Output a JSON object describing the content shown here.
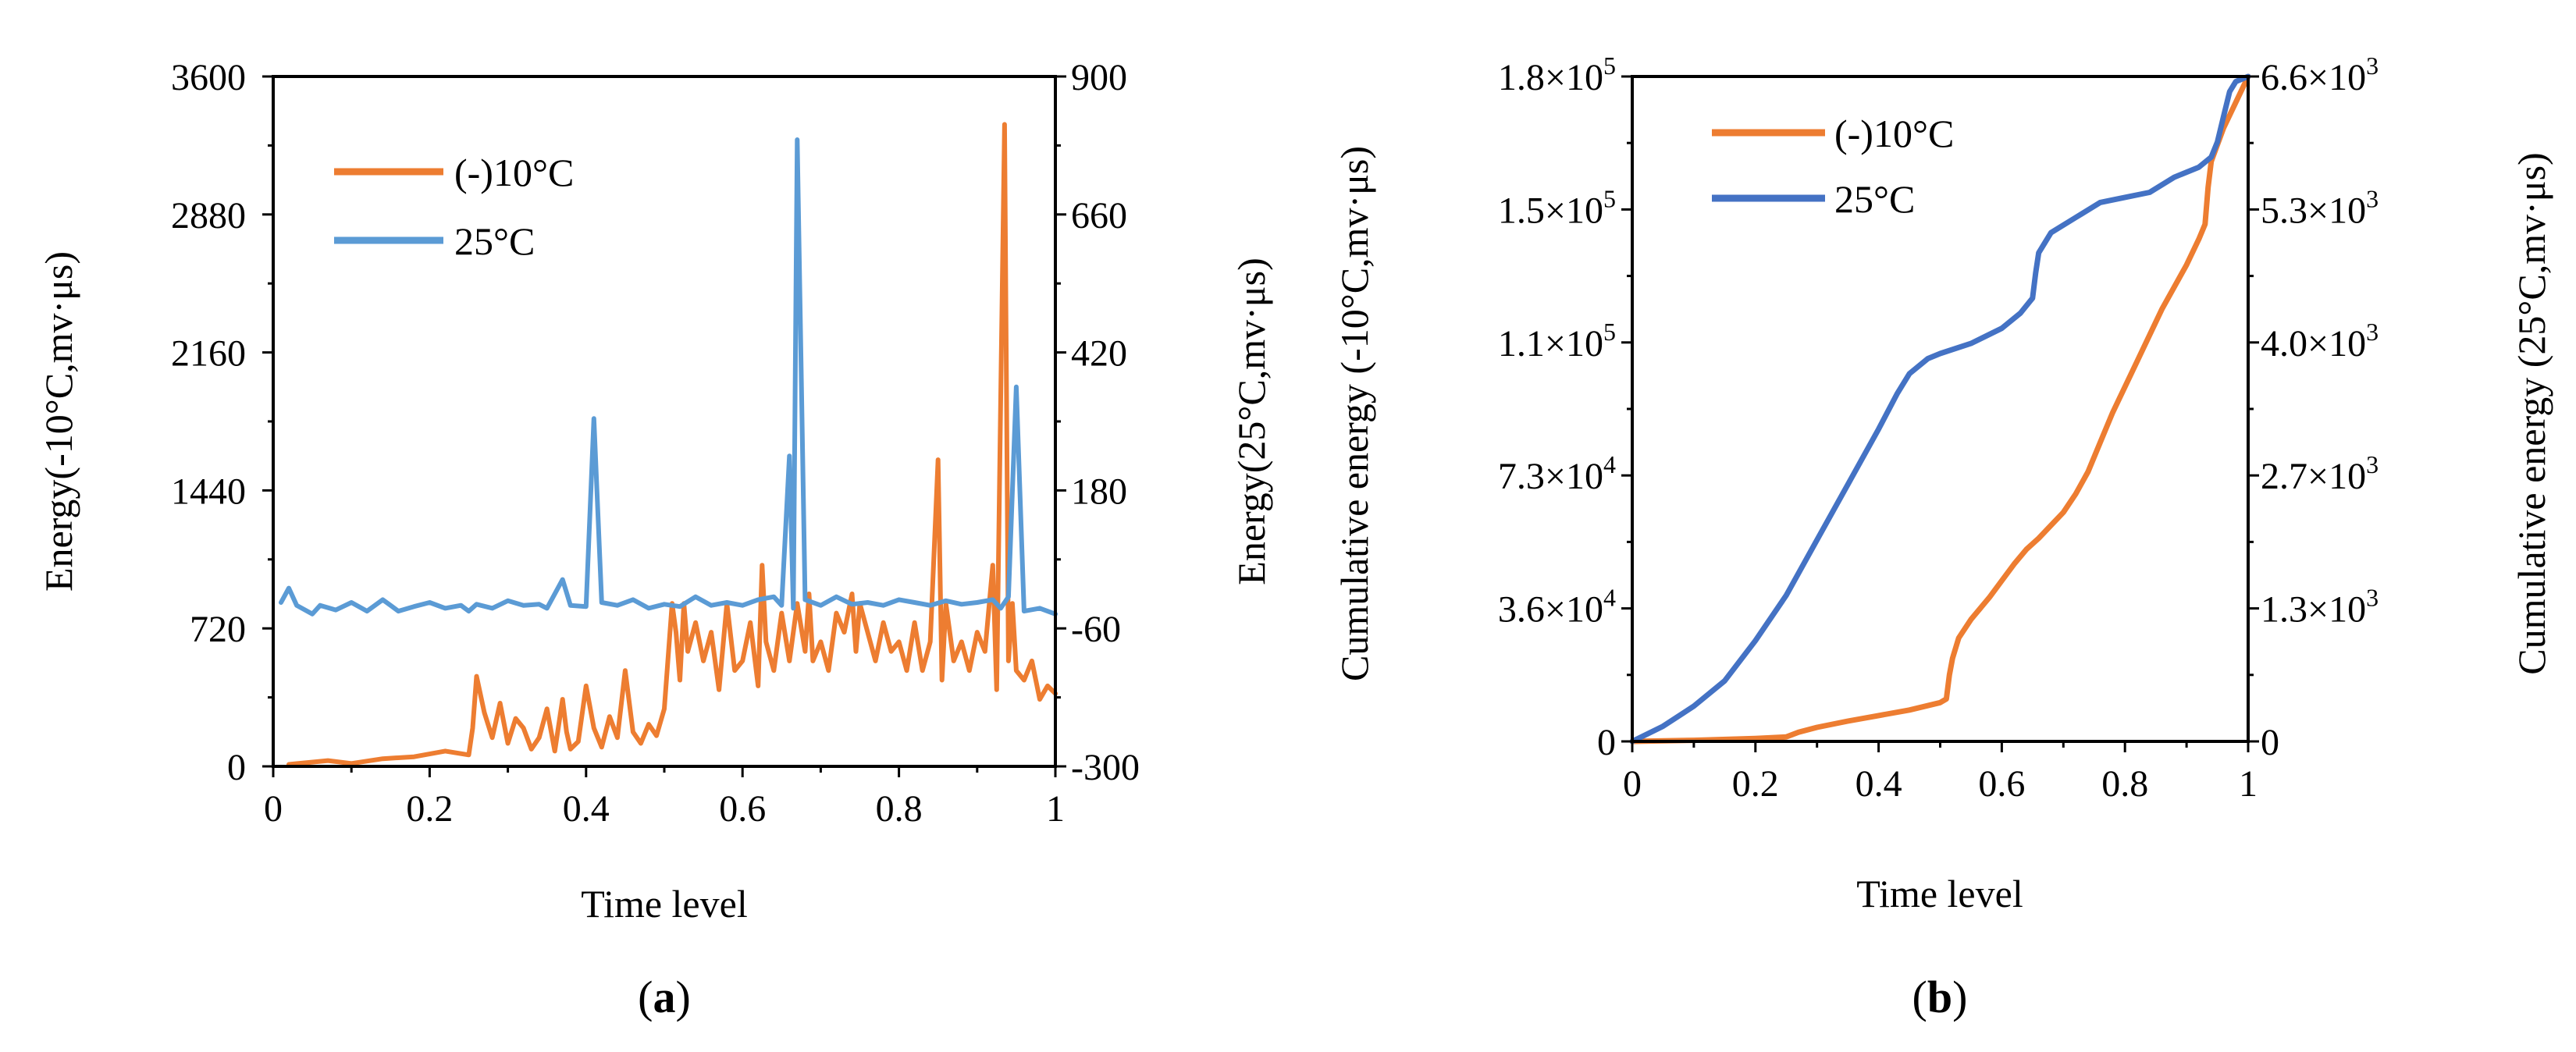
{
  "panels": [
    {
      "label_open": "(",
      "label_letter": "a",
      "label_close": ")",
      "xlabel": "Time level",
      "ylabel_left": "Energy(-10°C,mv·μs)",
      "ylabel_right": "Energy(25°C,mv·μs)"
    },
    {
      "label_open": "(",
      "label_letter": "b",
      "label_close": ")",
      "xlabel": "Time level",
      "ylabel_left": "Cumulative energy (-10°C,mv·μs)",
      "ylabel_right": "Cumulative energy (25°C,mv·μs)"
    }
  ],
  "colors": {
    "orange": "#ED7D31",
    "light_blue": "#5B9BD5",
    "dark_blue": "#4472C4"
  },
  "chart_data": [
    {
      "type": "line",
      "title": "",
      "xlabel": "Time level",
      "ylabel": "Energy(-10°C,mv·μs)",
      "y2label": "Energy(25°C,mv·μs)",
      "xlim": [
        0,
        1
      ],
      "ylim": [
        0,
        3600
      ],
      "y2lim": [
        -300,
        900
      ],
      "x_ticks": [
        "0",
        "0.2",
        "0.4",
        "0.6",
        "0.8",
        "1"
      ],
      "y_ticks": [
        "0",
        "720",
        "1440",
        "2160",
        "2880",
        "3600"
      ],
      "y2_ticks": [
        "-300",
        "-60",
        "180",
        "420",
        "660",
        "900"
      ],
      "legend": [
        "(-)10°C",
        "25°C"
      ],
      "legend_position": "top-left",
      "series": [
        {
          "name": "(-)10°C",
          "axis": "left",
          "color": "#ED7D31",
          "x": [
            0.02,
            0.07,
            0.1,
            0.14,
            0.18,
            0.22,
            0.25,
            0.255,
            0.26,
            0.27,
            0.28,
            0.29,
            0.3,
            0.31,
            0.32,
            0.33,
            0.34,
            0.35,
            0.36,
            0.37,
            0.375,
            0.38,
            0.39,
            0.4,
            0.41,
            0.42,
            0.43,
            0.44,
            0.45,
            0.46,
            0.47,
            0.48,
            0.49,
            0.5,
            0.51,
            0.515,
            0.52,
            0.525,
            0.53,
            0.54,
            0.55,
            0.56,
            0.57,
            0.58,
            0.59,
            0.6,
            0.61,
            0.62,
            0.625,
            0.63,
            0.64,
            0.65,
            0.66,
            0.67,
            0.68,
            0.685,
            0.69,
            0.7,
            0.71,
            0.72,
            0.73,
            0.74,
            0.745,
            0.75,
            0.76,
            0.77,
            0.78,
            0.79,
            0.8,
            0.81,
            0.82,
            0.83,
            0.84,
            0.85,
            0.855,
            0.86,
            0.87,
            0.88,
            0.89,
            0.9,
            0.91,
            0.92,
            0.925,
            0.93,
            0.935,
            0.94,
            0.945,
            0.95,
            0.96,
            0.97,
            0.98,
            0.99,
            1.0
          ],
          "y": [
            10,
            30,
            15,
            40,
            50,
            80,
            60,
            200,
            470,
            280,
            150,
            330,
            120,
            250,
            200,
            90,
            150,
            300,
            80,
            350,
            180,
            90,
            130,
            420,
            200,
            100,
            260,
            150,
            500,
            180,
            120,
            220,
            160,
            300,
            850,
            700,
            450,
            850,
            600,
            750,
            550,
            700,
            400,
            850,
            500,
            550,
            750,
            420,
            1050,
            650,
            500,
            800,
            550,
            850,
            600,
            900,
            550,
            650,
            500,
            800,
            700,
            900,
            600,
            850,
            700,
            550,
            750,
            600,
            650,
            500,
            750,
            500,
            650,
            1600,
            450,
            850,
            550,
            650,
            500,
            700,
            600,
            1050,
            400,
            1900,
            3350,
            550,
            850,
            500,
            450,
            550,
            350,
            420,
            380
          ]
        },
        {
          "name": "25°C",
          "axis": "right",
          "color": "#5B9BD5",
          "x": [
            0.01,
            0.02,
            0.03,
            0.05,
            0.06,
            0.08,
            0.1,
            0.12,
            0.14,
            0.15,
            0.16,
            0.18,
            0.2,
            0.22,
            0.24,
            0.25,
            0.26,
            0.28,
            0.3,
            0.32,
            0.34,
            0.35,
            0.37,
            0.38,
            0.4,
            0.41,
            0.42,
            0.44,
            0.46,
            0.48,
            0.5,
            0.52,
            0.54,
            0.56,
            0.58,
            0.6,
            0.62,
            0.64,
            0.65,
            0.66,
            0.665,
            0.67,
            0.68,
            0.7,
            0.72,
            0.74,
            0.76,
            0.78,
            0.8,
            0.82,
            0.84,
            0.86,
            0.88,
            0.9,
            0.92,
            0.93,
            0.94,
            0.95,
            0.96,
            0.98,
            1.0
          ],
          "y": [
            -15,
            10,
            -20,
            -35,
            -20,
            -28,
            -15,
            -30,
            -10,
            -20,
            -30,
            -22,
            -15,
            -25,
            -20,
            -30,
            -18,
            -25,
            -12,
            -20,
            -18,
            -25,
            25,
            -20,
            -22,
            305,
            -15,
            -20,
            -10,
            -25,
            -18,
            -22,
            -5,
            -20,
            -15,
            -20,
            -10,
            -5,
            -20,
            240,
            -25,
            790,
            -10,
            -20,
            -5,
            -18,
            -15,
            -20,
            -10,
            -15,
            -20,
            -12,
            -18,
            -15,
            -10,
            -25,
            -5,
            360,
            -30,
            -25,
            -35
          ]
        }
      ]
    },
    {
      "type": "line",
      "title": "",
      "xlabel": "Time level",
      "ylabel": "Cumulative energy (-10°C,mv·μs)",
      "y2label": "Cumulative energy (25°C,mv·μs)",
      "xlim": [
        0,
        1
      ],
      "ylim": [
        0,
        180000
      ],
      "y2lim": [
        0,
        6600
      ],
      "x_ticks": [
        "0",
        "0.2",
        "0.4",
        "0.6",
        "0.8",
        "1"
      ],
      "y_ticks": [
        {
          "mant": "0",
          "exp": ""
        },
        {
          "mant": "3.6×10",
          "exp": "4"
        },
        {
          "mant": "7.3×10",
          "exp": "4"
        },
        {
          "mant": "1.1×10",
          "exp": "5"
        },
        {
          "mant": "1.5×10",
          "exp": "5"
        },
        {
          "mant": "1.8×10",
          "exp": "5"
        }
      ],
      "y2_ticks": [
        {
          "mant": "0",
          "exp": ""
        },
        {
          "mant": "1.3×10",
          "exp": "3"
        },
        {
          "mant": "2.7×10",
          "exp": "3"
        },
        {
          "mant": "4.0×10",
          "exp": "3"
        },
        {
          "mant": "5.3×10",
          "exp": "3"
        },
        {
          "mant": "6.6×10",
          "exp": "3"
        }
      ],
      "legend": [
        "(-)10°C",
        "25°C"
      ],
      "legend_position": "top-left",
      "series": [
        {
          "name": "(-)10°C",
          "axis": "left",
          "color": "#ED7D31",
          "x": [
            0,
            0.1,
            0.2,
            0.25,
            0.27,
            0.3,
            0.35,
            0.4,
            0.45,
            0.5,
            0.51,
            0.515,
            0.52,
            0.53,
            0.55,
            0.58,
            0.6,
            0.62,
            0.64,
            0.66,
            0.68,
            0.7,
            0.72,
            0.74,
            0.76,
            0.78,
            0.8,
            0.82,
            0.84,
            0.86,
            0.88,
            0.9,
            0.92,
            0.93,
            0.935,
            0.94,
            0.96,
            0.98,
            1.0
          ],
          "y": [
            0,
            300,
            800,
            1200,
            2500,
            3800,
            5500,
            7000,
            8500,
            10500,
            11500,
            18000,
            22500,
            28000,
            33000,
            39000,
            43500,
            48000,
            52000,
            55000,
            58500,
            62000,
            67000,
            73000,
            81000,
            89000,
            96000,
            103000,
            110000,
            117000,
            123000,
            129000,
            136000,
            140000,
            150000,
            157000,
            166000,
            173000,
            180000
          ]
        },
        {
          "name": "25°C",
          "axis": "right",
          "color": "#4472C4",
          "x": [
            0,
            0.05,
            0.1,
            0.15,
            0.2,
            0.25,
            0.3,
            0.35,
            0.4,
            0.43,
            0.45,
            0.48,
            0.5,
            0.55,
            0.6,
            0.63,
            0.65,
            0.655,
            0.66,
            0.67,
            0.68,
            0.72,
            0.76,
            0.8,
            0.84,
            0.88,
            0.92,
            0.94,
            0.95,
            0.96,
            0.97,
            0.98,
            1.0
          ],
          "y": [
            0,
            150,
            350,
            600,
            1000,
            1450,
            2000,
            2550,
            3100,
            3450,
            3650,
            3800,
            3850,
            3950,
            4100,
            4250,
            4400,
            4650,
            4850,
            4950,
            5050,
            5200,
            5350,
            5400,
            5450,
            5600,
            5700,
            5800,
            5950,
            6200,
            6450,
            6550,
            6600
          ]
        }
      ]
    }
  ]
}
